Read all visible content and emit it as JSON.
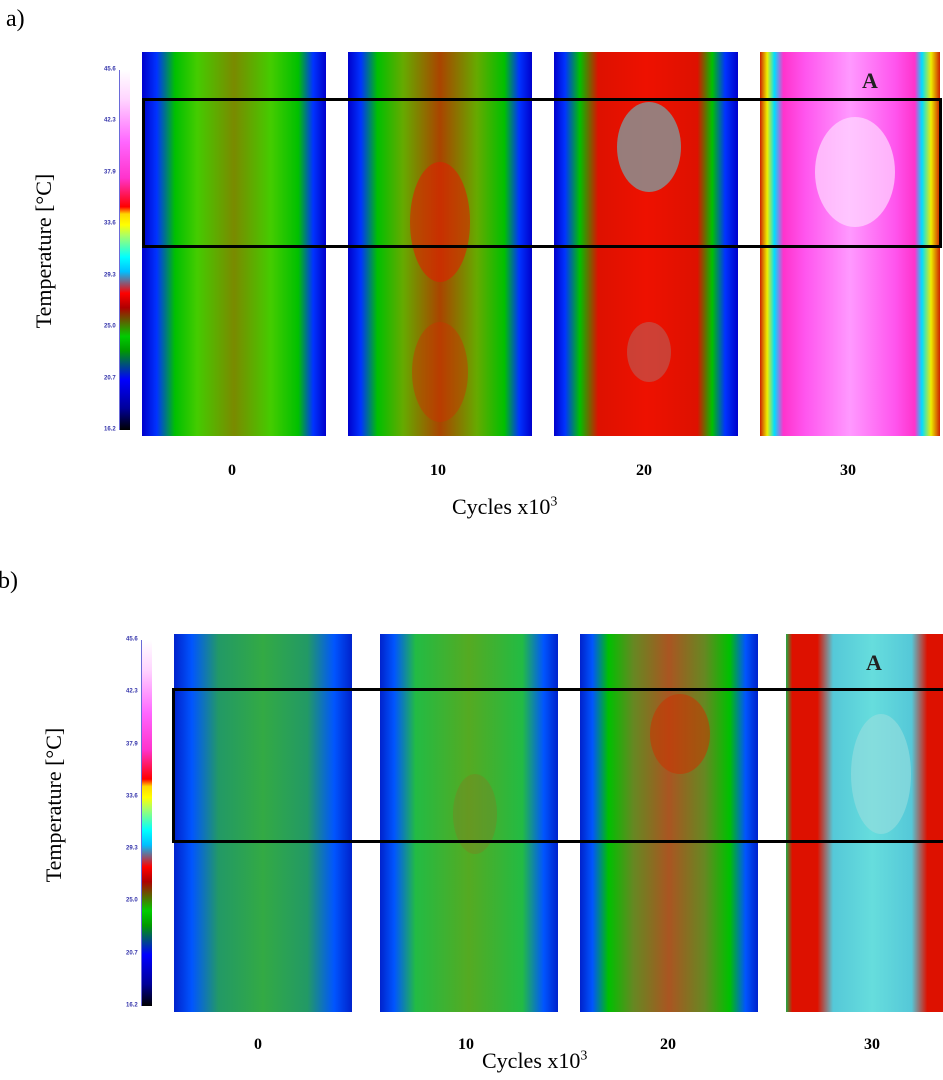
{
  "panels": [
    {
      "label": "a)",
      "ylabel": "Temperature [°C]",
      "colorbar_ticks": [
        "45.6",
        "42.3",
        "37.9",
        "33.6",
        "29.3",
        "25.0",
        "20.7",
        "16.2"
      ],
      "x_tick_labels": [
        "0",
        "10",
        "20",
        "30"
      ],
      "xaxis_title": "Cycles x10",
      "xaxis_title_sup": "3",
      "marker": "A"
    },
    {
      "label": "b)",
      "ylabel": "Temperature [°C]",
      "colorbar_ticks": [
        "45.6",
        "42.3",
        "37.9",
        "33.6",
        "29.3",
        "25.0",
        "20.7",
        "16.2"
      ],
      "x_tick_labels": [
        "0",
        "10",
        "20",
        "30"
      ],
      "xaxis_title": "Cycles x10",
      "xaxis_title_sup": "3",
      "marker": "A"
    }
  ],
  "colors": {
    "roi_box": "#000000",
    "colorbar_tick_text": "#3333aa"
  }
}
